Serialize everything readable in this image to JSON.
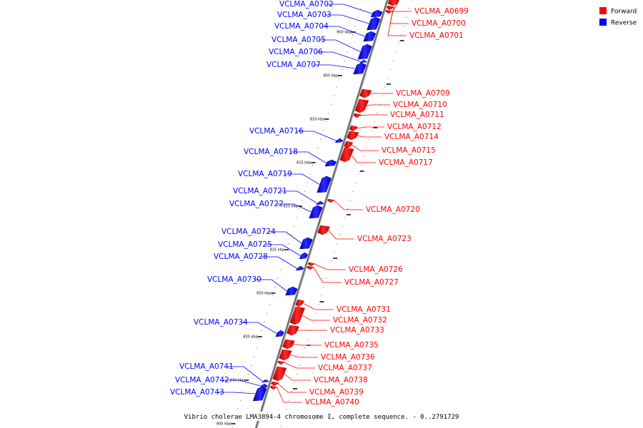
{
  "title": "Vibrio cholerae LMA3894-4 chromosome I, complete sequence. - 0..2791729",
  "legend": [
    {
      "label": "Forward",
      "color": "#ff0000"
    },
    {
      "label": "Reverse",
      "color": "#0000ff"
    }
  ],
  "colors": {
    "forward": "#ff0000",
    "reverse": "#0000ff",
    "backbone": "#808080"
  },
  "tick_labels": [
    "800 kbp",
    "805 kbp",
    "810 kbp",
    "815 kbp",
    "820 kbp",
    "825 kbp",
    "830 kbp",
    "835 kbp",
    "840 kbp",
    "845 kbp"
  ],
  "genes": [
    {
      "name": "VCLMA_A0699",
      "strand": "forward"
    },
    {
      "name": "VCLMA_A0700",
      "strand": "forward"
    },
    {
      "name": "VCLMA_A0701",
      "strand": "forward"
    },
    {
      "name": "VCLMA_A0702",
      "strand": "reverse"
    },
    {
      "name": "VCLMA_A0703",
      "strand": "reverse"
    },
    {
      "name": "VCLMA_A0704",
      "strand": "reverse"
    },
    {
      "name": "VCLMA_A0705",
      "strand": "reverse"
    },
    {
      "name": "VCLMA_A0706",
      "strand": "reverse"
    },
    {
      "name": "VCLMA_A0707",
      "strand": "reverse"
    },
    {
      "name": "VCLMA_A0709",
      "strand": "forward"
    },
    {
      "name": "VCLMA_A0710",
      "strand": "forward"
    },
    {
      "name": "VCLMA_A0711",
      "strand": "forward"
    },
    {
      "name": "VCLMA_A0712",
      "strand": "forward"
    },
    {
      "name": "VCLMA_A0714",
      "strand": "forward"
    },
    {
      "name": "VCLMA_A0715",
      "strand": "forward"
    },
    {
      "name": "VCLMA_A0716",
      "strand": "reverse"
    },
    {
      "name": "VCLMA_A0717",
      "strand": "forward"
    },
    {
      "name": "VCLMA_A0718",
      "strand": "reverse"
    },
    {
      "name": "VCLMA_A0719",
      "strand": "reverse"
    },
    {
      "name": "VCLMA_A0720",
      "strand": "forward"
    },
    {
      "name": "VCLMA_A0721",
      "strand": "reverse"
    },
    {
      "name": "VCLMA_A0722",
      "strand": "reverse"
    },
    {
      "name": "VCLMA_A0723",
      "strand": "forward"
    },
    {
      "name": "VCLMA_A0724",
      "strand": "reverse"
    },
    {
      "name": "VCLMA_A0725",
      "strand": "reverse"
    },
    {
      "name": "VCLMA_A0726",
      "strand": "forward"
    },
    {
      "name": "VCLMA_A0727",
      "strand": "forward"
    },
    {
      "name": "VCLMA_A0728",
      "strand": "reverse"
    },
    {
      "name": "VCLMA_A0730",
      "strand": "reverse"
    },
    {
      "name": "VCLMA_A0731",
      "strand": "forward"
    },
    {
      "name": "VCLMA_A0732",
      "strand": "forward"
    },
    {
      "name": "VCLMA_A0733",
      "strand": "forward"
    },
    {
      "name": "VCLMA_A0734",
      "strand": "reverse"
    },
    {
      "name": "VCLMA_A0735",
      "strand": "forward"
    },
    {
      "name": "VCLMA_A0736",
      "strand": "forward"
    },
    {
      "name": "VCLMA_A0737",
      "strand": "forward"
    },
    {
      "name": "VCLMA_A0738",
      "strand": "forward"
    },
    {
      "name": "VCLMA_A0739",
      "strand": "forward"
    },
    {
      "name": "VCLMA_A0740",
      "strand": "forward"
    },
    {
      "name": "VCLMA_A0741",
      "strand": "reverse"
    },
    {
      "name": "VCLMA_A0742",
      "strand": "reverse"
    },
    {
      "name": "VCLMA_A0743",
      "strand": "reverse"
    }
  ]
}
